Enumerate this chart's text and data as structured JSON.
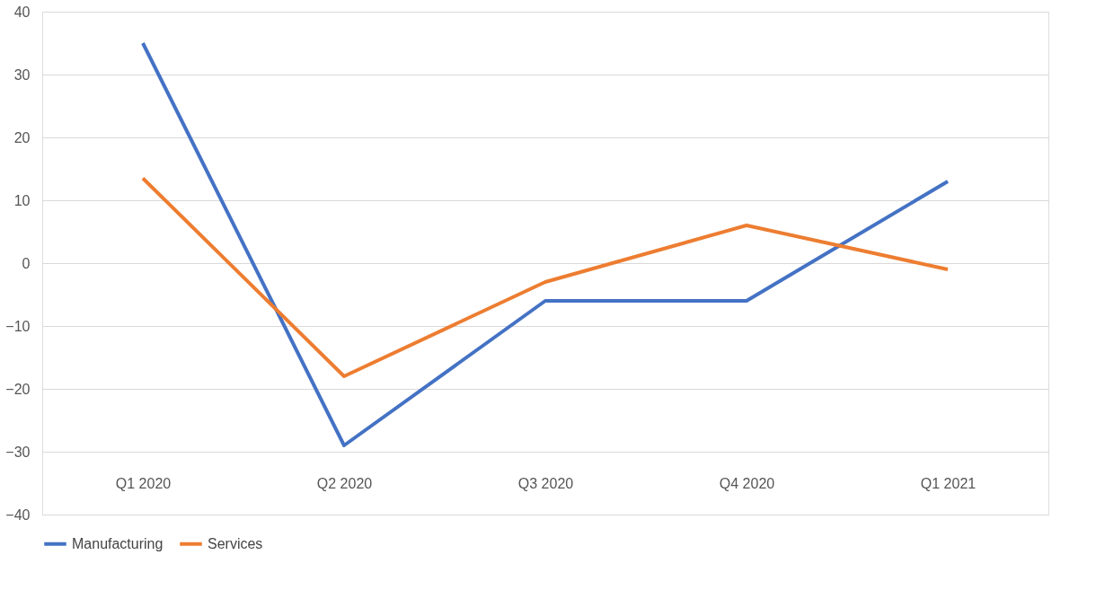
{
  "chart_data": {
    "type": "line",
    "categories": [
      "Q1 2020",
      "Q2 2020",
      "Q3 2020",
      "Q4 2020",
      "Q1 2021"
    ],
    "series": [
      {
        "name": "Manufacturing",
        "color": "#4472c4",
        "values": [
          35,
          -29,
          -6,
          -6,
          13
        ]
      },
      {
        "name": "Services",
        "color": "#ed7d31",
        "values": [
          13.5,
          -18,
          -3,
          6,
          -1
        ]
      }
    ],
    "ylim": [
      -40,
      40
    ],
    "yticks": [
      -40,
      -30,
      -20,
      -10,
      0,
      10,
      20,
      30,
      40
    ],
    "grid": "y",
    "legend": "bottom",
    "marker": "none",
    "line_style": "solid"
  }
}
